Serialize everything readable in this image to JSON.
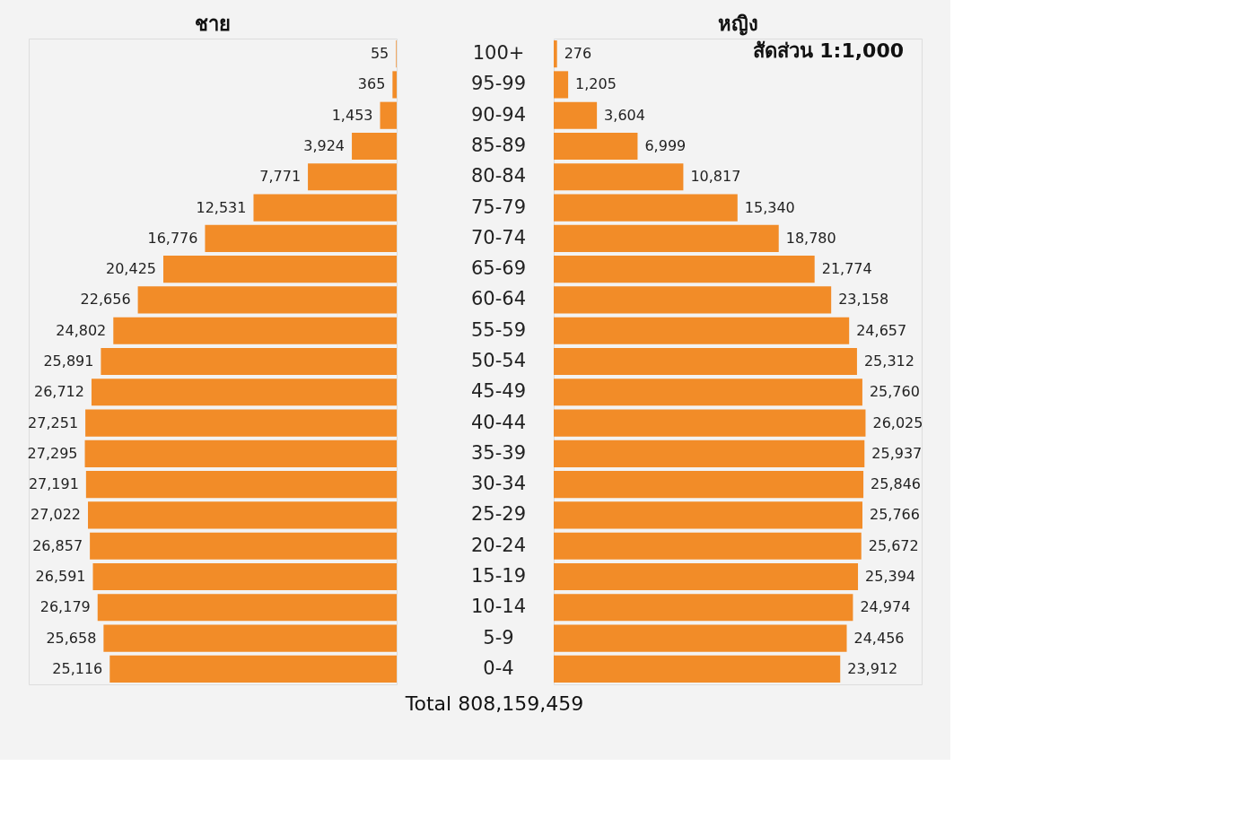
{
  "chart_data": [
    {
      "type": "bar",
      "orientation": "horizontal",
      "title": "ชาย",
      "categories": [
        null,
        null,
        null,
        null,
        null,
        null,
        null,
        null,
        null,
        null,
        null,
        null,
        null,
        null,
        null,
        null,
        null,
        null,
        null,
        null,
        null
      ],
      "series": [
        {
          "color": "#f28c28",
          "values": [
            55,
            365,
            1453,
            3924,
            7771,
            12531,
            16776,
            20425,
            22656,
            24802,
            25891,
            26712,
            27251,
            27295,
            27191,
            27022,
            26857,
            26591,
            26179,
            25658,
            25116
          ],
          "value_labels": [
            "55",
            "365",
            "1,453",
            "3,924",
            "7,771",
            "12,531",
            "16,776",
            "20,425",
            "22,656",
            "24,802",
            "25,891",
            "26,712",
            "27,251",
            "27,295",
            "27,191",
            "27,022",
            "26,857",
            "26,591",
            "26,179",
            "25,658",
            "25,116"
          ]
        }
      ],
      "tick_labels": false,
      "grid": false
    },
    {
      "type": "bar",
      "orientation": "horizontal",
      "title": "หญิง",
      "categories": [
        "100+",
        "95-99",
        "90-94",
        "85-89",
        "80-84",
        "75-79",
        "70-74",
        "65-69",
        "60-64",
        "55-59",
        "50-54",
        "45-49",
        "40-44",
        "35-39",
        "30-34",
        "25-29",
        "20-24",
        "15-19",
        "10-14",
        "5-9",
        "0-4"
      ],
      "series": [
        {
          "color": "#f28c28",
          "values": [
            276,
            1205,
            3604,
            6999,
            10817,
            15340,
            18780,
            21774,
            23158,
            24657,
            25312,
            25760,
            26025,
            25937,
            25846,
            25766,
            25672,
            25394,
            24974,
            24456,
            23912
          ],
          "value_labels": [
            "276",
            "1,205",
            "3,604",
            "6,999",
            "10,817",
            "15,340",
            "18,780",
            "21,774",
            "23,158",
            "24,657",
            "25,312",
            "25,760",
            "26,025",
            "25,937",
            "25,846",
            "25,766",
            "25,672",
            "25,394",
            "24,974",
            "24,456",
            "23,912"
          ]
        }
      ],
      "tick_labels": "y",
      "grid": false,
      "annotations": [
        "สัดส่วน 1:1,000",
        "Total 808,159,459"
      ]
    }
  ]
}
